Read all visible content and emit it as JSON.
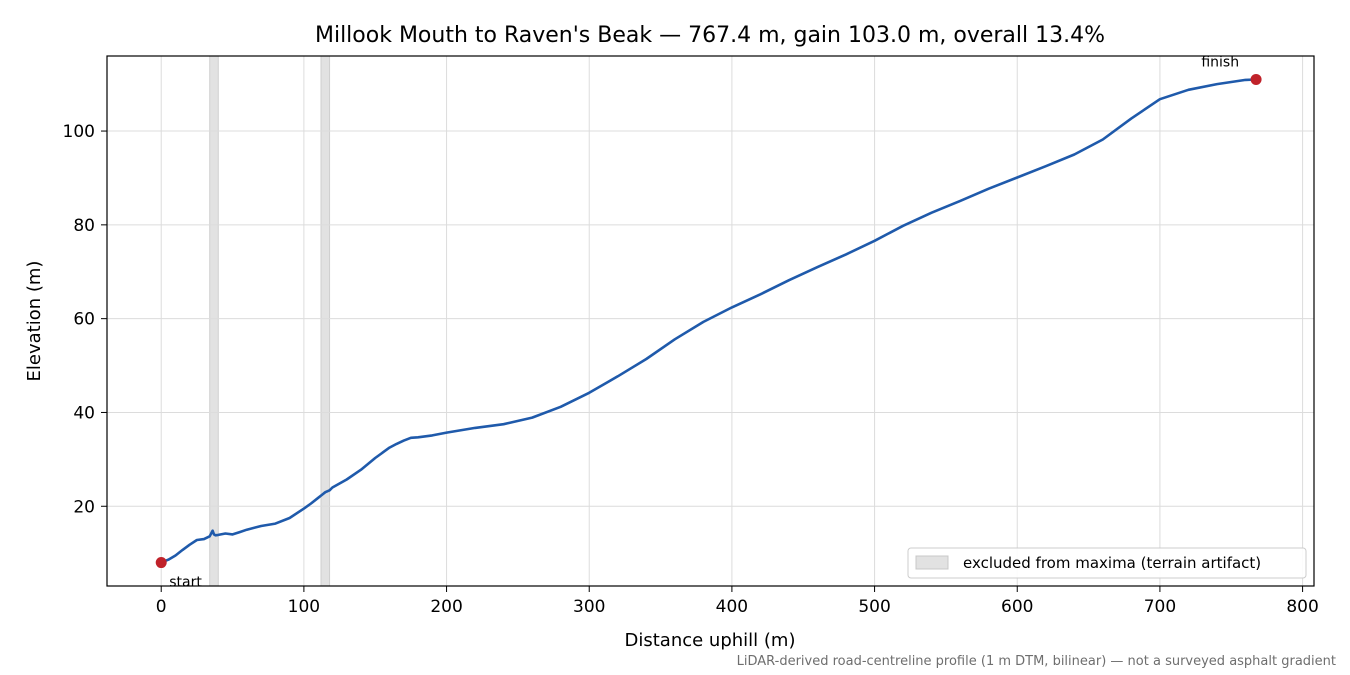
{
  "chart_data": {
    "type": "line",
    "title": "Millook Mouth to Raven's Beak — 767.4 m, gain 103.0 m, overall 13.4%",
    "xlabel": "Distance uphill (m)",
    "ylabel": "Elevation (m)",
    "xlim": [
      -38,
      808
    ],
    "ylim": [
      3,
      116
    ],
    "xticks": [
      0,
      100,
      200,
      300,
      400,
      500,
      600,
      700,
      800
    ],
    "yticks": [
      20,
      40,
      60,
      80,
      100
    ],
    "grid": true,
    "series": [
      {
        "color": "#1f5aab",
        "x": [
          0,
          5,
          10,
          15,
          20,
          25,
          30,
          34,
          36,
          37,
          38,
          40,
          45,
          50,
          55,
          60,
          70,
          80,
          90,
          100,
          105,
          110,
          113,
          115,
          118,
          120,
          130,
          140,
          150,
          160,
          165,
          170,
          175,
          180,
          190,
          200,
          220,
          240,
          260,
          280,
          300,
          320,
          340,
          360,
          380,
          400,
          420,
          440,
          460,
          480,
          500,
          520,
          540,
          560,
          580,
          600,
          620,
          640,
          660,
          680,
          700,
          720,
          740,
          760,
          767.4
        ],
        "y": [
          8.0,
          8.6,
          9.5,
          10.7,
          11.8,
          12.8,
          13.0,
          13.6,
          14.8,
          14.0,
          13.8,
          13.9,
          14.2,
          14.0,
          14.5,
          15.0,
          15.8,
          16.3,
          17.5,
          19.5,
          20.6,
          21.8,
          22.5,
          23.0,
          23.4,
          24.0,
          25.7,
          27.8,
          30.3,
          32.5,
          33.3,
          34.0,
          34.6,
          34.7,
          35.1,
          35.7,
          36.7,
          37.5,
          38.9,
          41.2,
          44.2,
          47.7,
          51.4,
          55.6,
          59.3,
          62.4,
          65.2,
          68.2,
          71.0,
          73.7,
          76.6,
          79.8,
          82.6,
          85.1,
          87.7,
          90.1,
          92.5,
          95.0,
          98.2,
          102.7,
          106.8,
          108.8,
          110.0,
          110.9,
          111.0
        ]
      }
    ],
    "markers": [
      {
        "x": 0,
        "y": 8.0,
        "label": "start",
        "color": "#c0222a"
      },
      {
        "x": 767.4,
        "y": 111.0,
        "label": "finish",
        "color": "#c0222a"
      }
    ],
    "excluded_bands": [
      [
        34,
        40
      ],
      [
        112,
        118
      ]
    ],
    "legend": {
      "placement": "lower-right",
      "entries": [
        {
          "label": "excluded from maxima (terrain artifact)",
          "color": "#e2e2e2"
        }
      ]
    },
    "footnote": "LiDAR-derived road-centreline profile (1 m DTM, bilinear) — not a surveyed asphalt gradient"
  }
}
